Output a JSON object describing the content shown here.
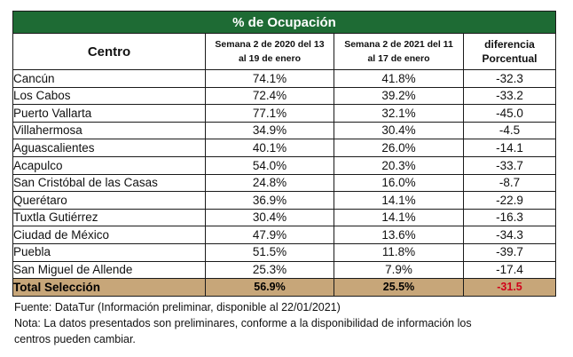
{
  "title": "% de Ocupación",
  "headers": {
    "centro": "Centro",
    "semana_2020_line1": "Semana 2 de 2020 del 13",
    "semana_2020_line2": "al 19 de enero",
    "semana_2021_line1": "Semana 2 de 2021 del 11",
    "semana_2021_line2": "al 17 de enero",
    "diferencia_line1": "diferencia",
    "diferencia_line2": "Porcentual"
  },
  "rows": [
    {
      "centro": "Cancún",
      "y2020": "74.1%",
      "y2021": "41.8%",
      "diff": "-32.3"
    },
    {
      "centro": "Los Cabos",
      "y2020": "72.4%",
      "y2021": "39.2%",
      "diff": "-33.2"
    },
    {
      "centro": "Puerto Vallarta",
      "y2020": "77.1%",
      "y2021": "32.1%",
      "diff": "-45.0"
    },
    {
      "centro": "Villahermosa",
      "y2020": "34.9%",
      "y2021": "30.4%",
      "diff": "-4.5"
    },
    {
      "centro": "Aguascalientes",
      "y2020": "40.1%",
      "y2021": "26.0%",
      "diff": "-14.1"
    },
    {
      "centro": "Acapulco",
      "y2020": "54.0%",
      "y2021": "20.3%",
      "diff": "-33.7"
    },
    {
      "centro": "San Cristóbal de las Casas",
      "y2020": "24.8%",
      "y2021": "16.0%",
      "diff": "-8.7"
    },
    {
      "centro": "Querétaro",
      "y2020": "36.9%",
      "y2021": "14.1%",
      "diff": "-22.9"
    },
    {
      "centro": "Tuxtla Gutiérrez",
      "y2020": "30.4%",
      "y2021": "14.1%",
      "diff": "-16.3"
    },
    {
      "centro": "Ciudad de México",
      "y2020": "47.9%",
      "y2021": "13.6%",
      "diff": "-34.3"
    },
    {
      "centro": "Puebla",
      "y2020": "51.5%",
      "y2021": "11.8%",
      "diff": "-39.7"
    },
    {
      "centro": "San Miguel de Allende",
      "y2020": "25.3%",
      "y2021": "7.9%",
      "diff": "-17.4"
    }
  ],
  "total": {
    "centro": "Total Selección",
    "y2020": "56.9%",
    "y2021": "25.5%",
    "diff": "-31.5"
  },
  "notes": {
    "fuente": "Fuente: DataTur (Información preliminar, disponible al 22/01/2021)",
    "nota_line1": "Nota: La datos presentados son preliminares, conforme a la disponibilidad de información los",
    "nota_line2": "centros pueden cambiar."
  },
  "colors": {
    "title_bg": "#1e6b34",
    "total_bg": "#c7a679",
    "diff_text": "#d0021b"
  }
}
